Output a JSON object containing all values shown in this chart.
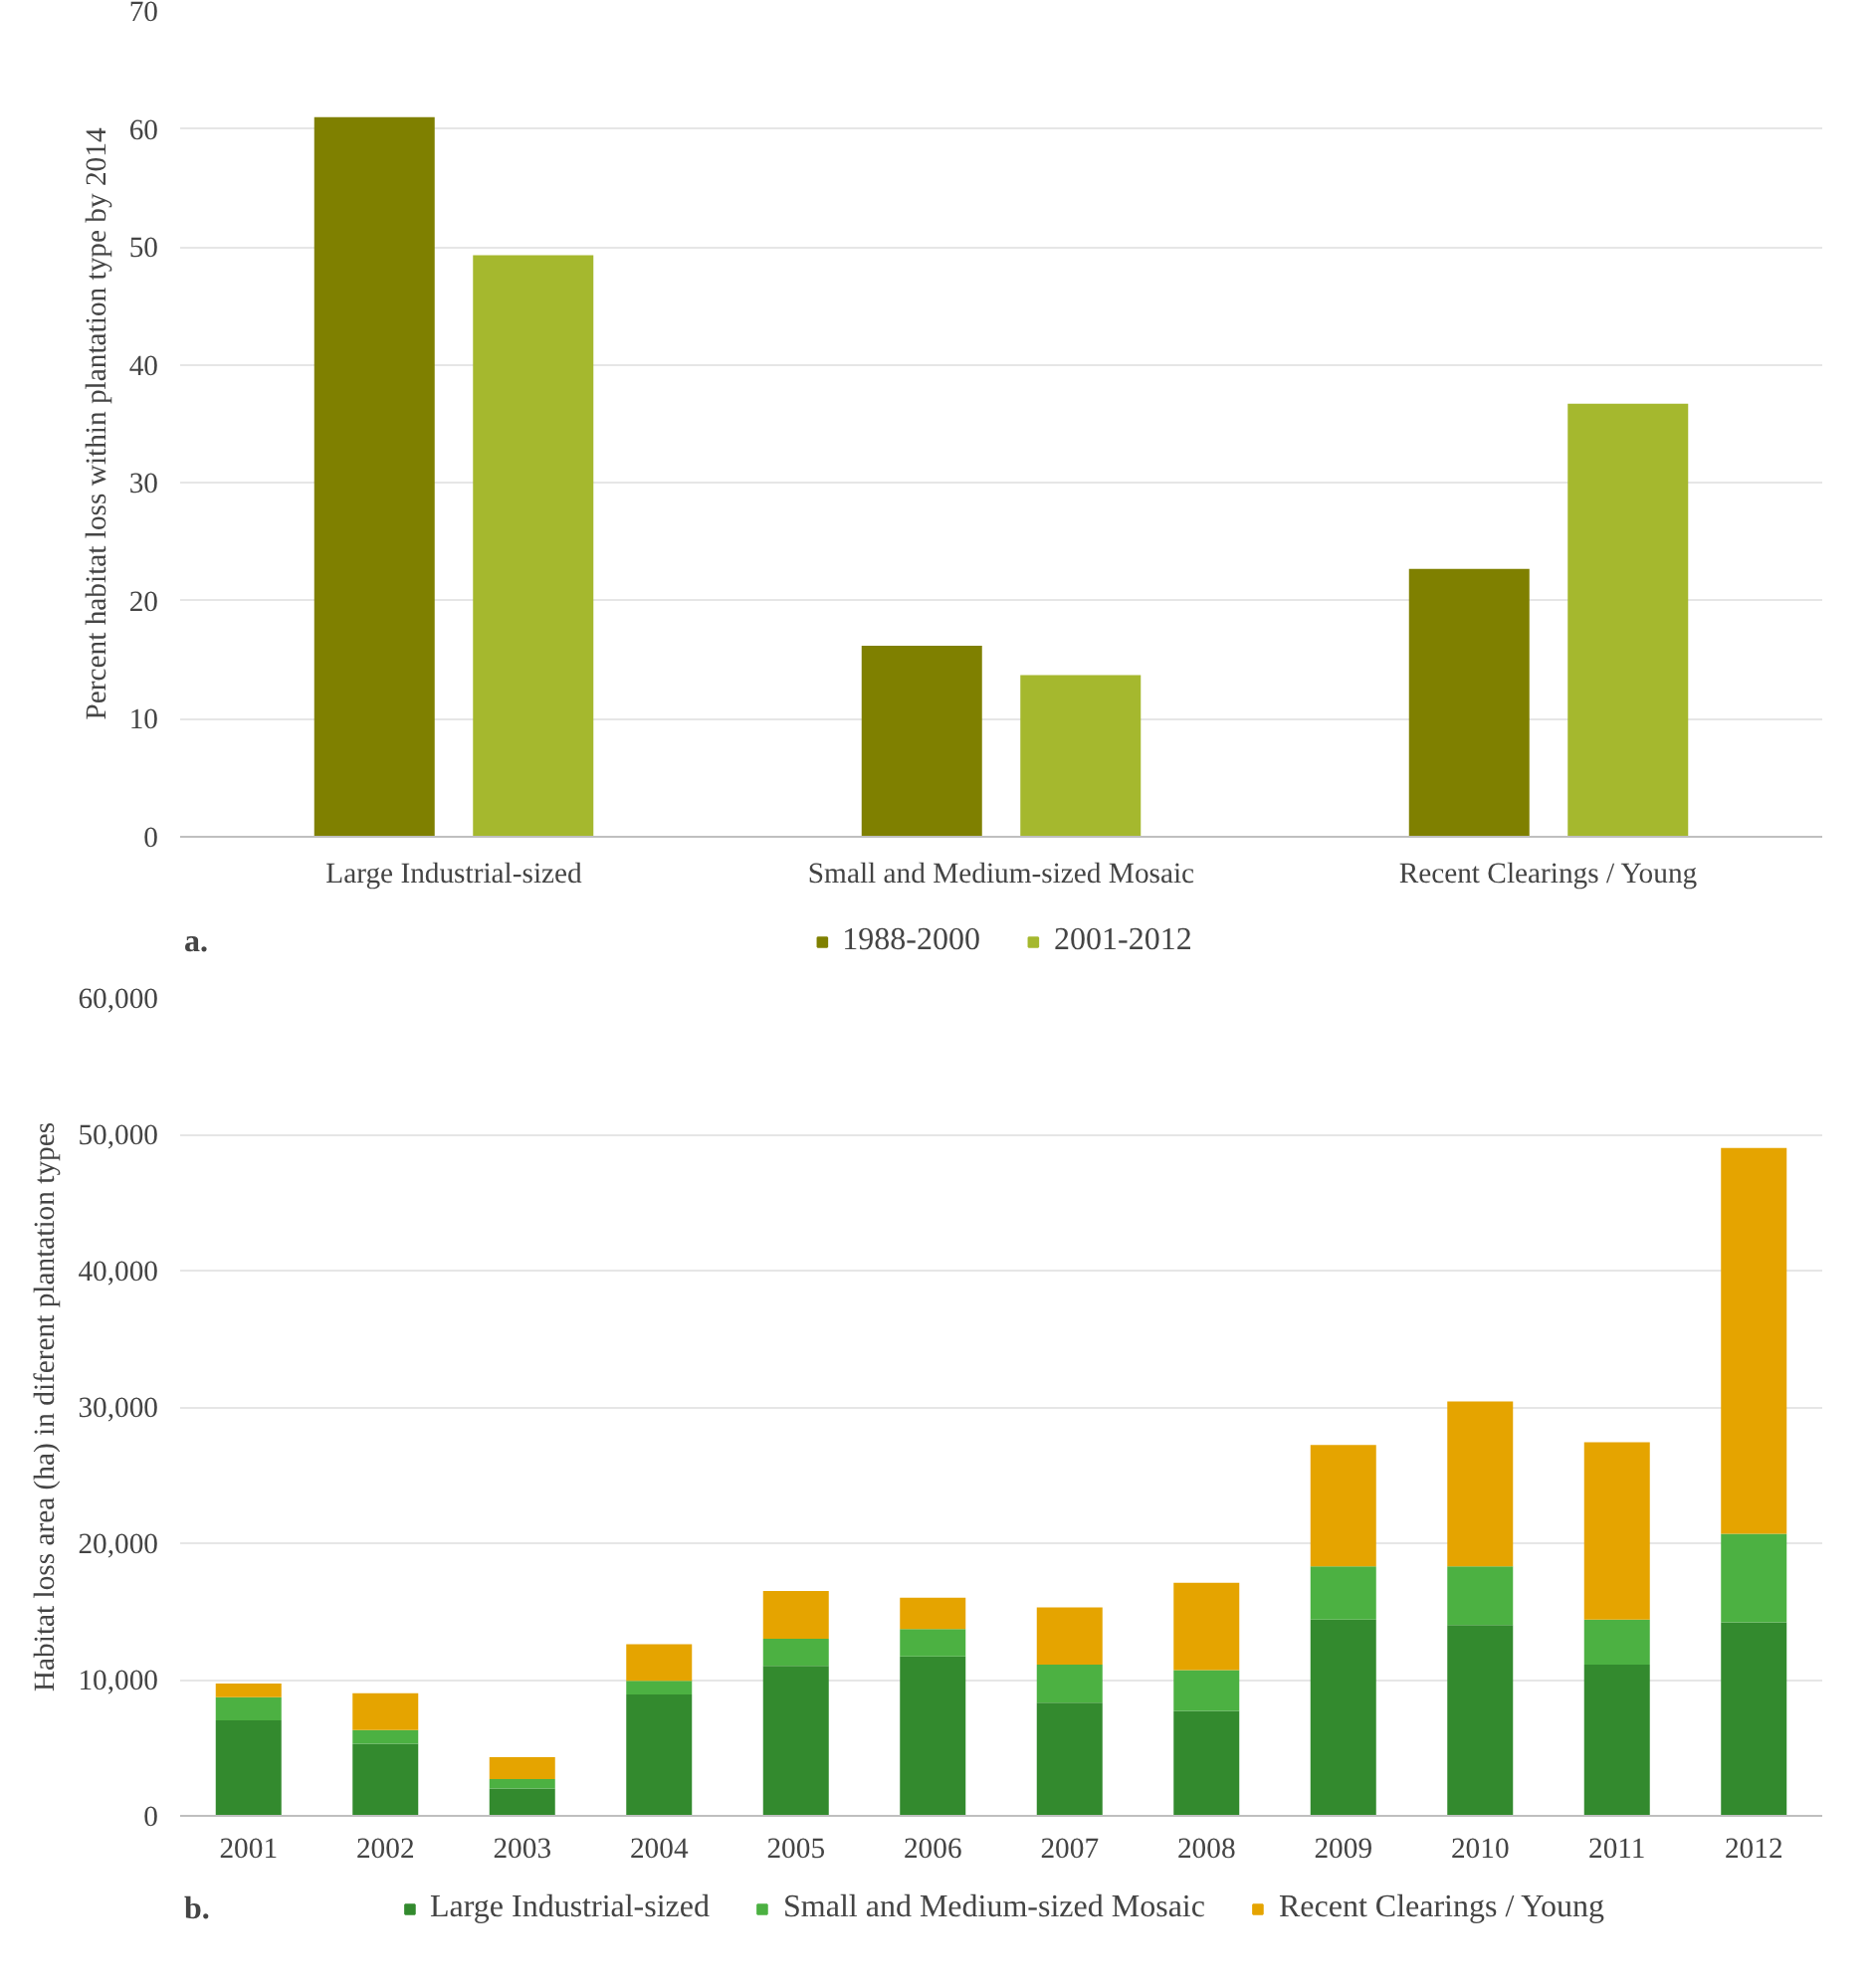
{
  "chart_data": [
    {
      "type": "bar",
      "ylabel": "Percent habitat loss within plantation type by 2014",
      "categories": [
        "Large Industrial-sized",
        "Small and Medium-sized Mosaic",
        "Recent Clearings / Young"
      ],
      "series": [
        {
          "name": "1988-2000",
          "color": "#7f8000",
          "values": [
            61,
            16.2,
            22.7
          ]
        },
        {
          "name": "2001-2012",
          "color": "#a5b82e",
          "values": [
            49.3,
            13.7,
            36.7
          ]
        }
      ],
      "ylim": [
        0,
        70
      ],
      "yticks": [
        0,
        10,
        20,
        30,
        40,
        50,
        60,
        70
      ],
      "grid": "y",
      "legend": "bottom",
      "annotations": [
        "a."
      ]
    },
    {
      "type": "bar",
      "stacked": true,
      "ylabel": "Habitat loss area (ha) in diferent plantation types",
      "categories": [
        "2001",
        "2002",
        "2003",
        "2004",
        "2005",
        "2006",
        "2007",
        "2008",
        "2009",
        "2010",
        "2011",
        "2012"
      ],
      "series": [
        {
          "name": "Large Industrial-sized",
          "color": "#338a2e",
          "values": [
            7000,
            5300,
            2000,
            8900,
            11000,
            11700,
            8300,
            7700,
            14400,
            14000,
            11100,
            14200
          ]
        },
        {
          "name": "Small and Medium-sized Mosaic",
          "color": "#4cb142",
          "values": [
            1700,
            1000,
            700,
            1000,
            2000,
            2000,
            2800,
            3000,
            3900,
            4300,
            3300,
            6500
          ]
        },
        {
          "name": "Recent Clearings / Young",
          "color": "#e5a400",
          "values": [
            1000,
            2700,
            1600,
            2700,
            3500,
            2300,
            4200,
            6400,
            8900,
            12100,
            13000,
            28300
          ]
        }
      ],
      "ylim": [
        0,
        60000
      ],
      "yticks": [
        0,
        {
          "value": 10000,
          "label": "10,000"
        },
        {
          "value": 20000,
          "label": "20,000"
        },
        {
          "value": 30000,
          "label": "30,000"
        },
        {
          "value": 40000,
          "label": "40,000"
        },
        {
          "value": 50000,
          "label": "50,000"
        },
        {
          "value": 60000,
          "label": "60,000"
        }
      ],
      "grid": "y",
      "legend": "bottom",
      "annotations": [
        "b."
      ]
    }
  ]
}
